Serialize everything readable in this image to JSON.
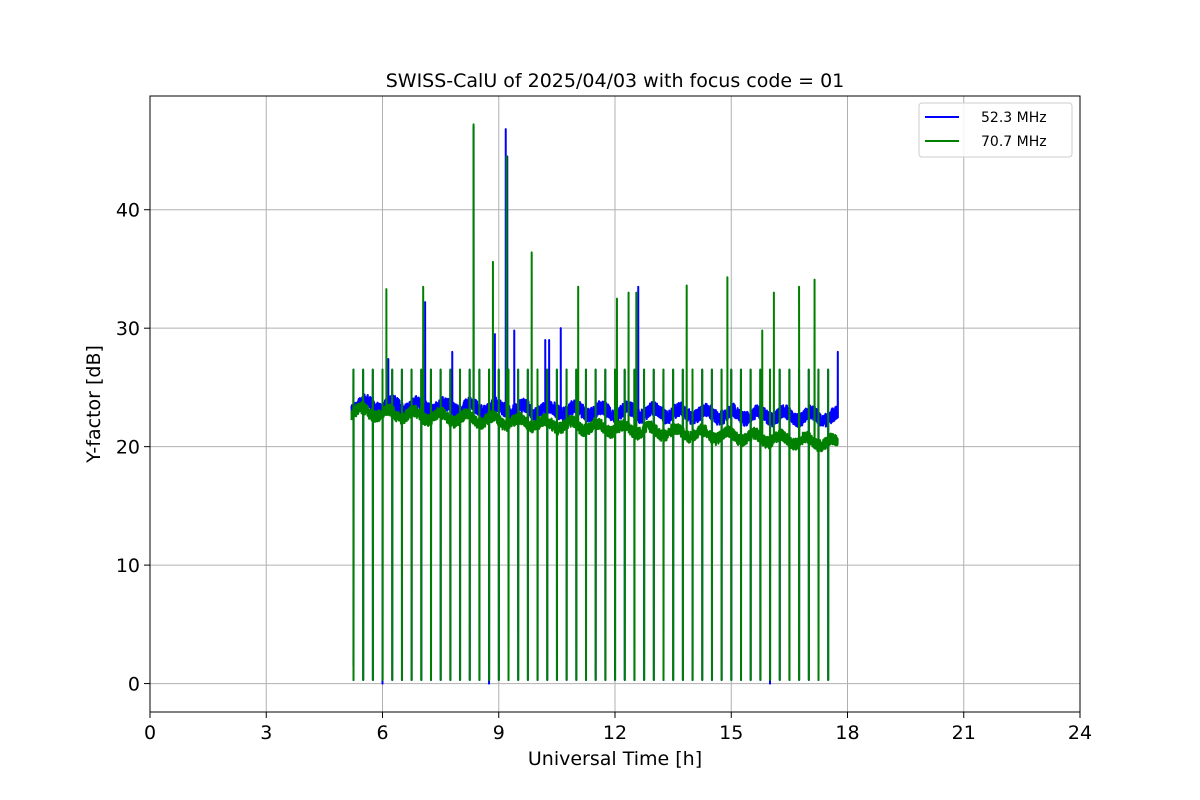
{
  "chart_data": {
    "type": "line",
    "title": "SWISS-CalU of 2025/04/03 with focus code = 01",
    "xlabel": "Universal Time [h]",
    "ylabel": "Y-factor [dB]",
    "xlim": [
      0,
      24
    ],
    "ylim": [
      -2.4,
      49.6
    ],
    "xticks": [
      0,
      3,
      6,
      9,
      12,
      15,
      18,
      21,
      24
    ],
    "yticks": [
      0,
      10,
      20,
      30,
      40
    ],
    "grid": true,
    "legend_position": "top-right",
    "series": [
      {
        "name": "   52.3 MHz",
        "color": "#0000ff",
        "baseline_start": 23.5,
        "baseline_end": 22.5,
        "noise": 0.6,
        "x_start": 5.2,
        "x_end": 17.75,
        "calibration_high": 26.5,
        "calibration_low": 0.3,
        "spikes": [
          [
            5.25,
            1.5
          ],
          [
            6.0,
            0.0
          ],
          [
            6.15,
            27.4
          ],
          [
            7.1,
            32.2
          ],
          [
            7.8,
            28.0
          ],
          [
            8.35,
            47.0
          ],
          [
            8.75,
            0.0
          ],
          [
            8.9,
            29.5
          ],
          [
            9.18,
            46.8
          ],
          [
            9.22,
            44.5
          ],
          [
            9.4,
            29.8
          ],
          [
            10.2,
            29.0
          ],
          [
            10.3,
            29.0
          ],
          [
            10.6,
            30.0
          ],
          [
            11.5,
            0.6
          ],
          [
            12.0,
            0.4
          ],
          [
            12.6,
            33.5
          ],
          [
            16.0,
            0.0
          ],
          [
            17.75,
            28.0
          ]
        ]
      },
      {
        "name": "   70.7 MHz",
        "color": "#008000",
        "baseline_start": 23.0,
        "baseline_end": 20.3,
        "noise": 0.5,
        "x_start": 5.2,
        "x_end": 17.75,
        "calibration_high": 26.5,
        "calibration_low": 0.3,
        "spikes": [
          [
            6.1,
            33.3
          ],
          [
            7.05,
            33.5
          ],
          [
            8.35,
            47.2
          ],
          [
            8.85,
            35.6
          ],
          [
            9.2,
            44.5
          ],
          [
            9.85,
            36.4
          ],
          [
            11.05,
            33.5
          ],
          [
            12.05,
            32.5
          ],
          [
            12.35,
            33.0
          ],
          [
            12.55,
            33.0
          ],
          [
            13.85,
            33.6
          ],
          [
            14.9,
            34.3
          ],
          [
            15.8,
            29.8
          ],
          [
            16.1,
            33.0
          ],
          [
            16.75,
            33.5
          ],
          [
            17.15,
            34.1
          ]
        ]
      }
    ],
    "calibration_times": [
      5.25,
      5.5,
      5.75,
      6.0,
      6.25,
      6.5,
      6.75,
      7.0,
      7.25,
      7.5,
      7.75,
      8.0,
      8.25,
      8.5,
      8.75,
      9.0,
      9.25,
      9.5,
      9.75,
      10.0,
      10.25,
      10.5,
      10.75,
      11.0,
      11.25,
      11.5,
      11.75,
      12.0,
      12.25,
      12.5,
      12.75,
      13.0,
      13.25,
      13.5,
      13.75,
      14.0,
      14.25,
      14.5,
      14.75,
      15.0,
      15.25,
      15.5,
      15.75,
      16.0,
      16.25,
      16.5,
      16.75,
      17.0,
      17.25,
      17.5
    ]
  }
}
